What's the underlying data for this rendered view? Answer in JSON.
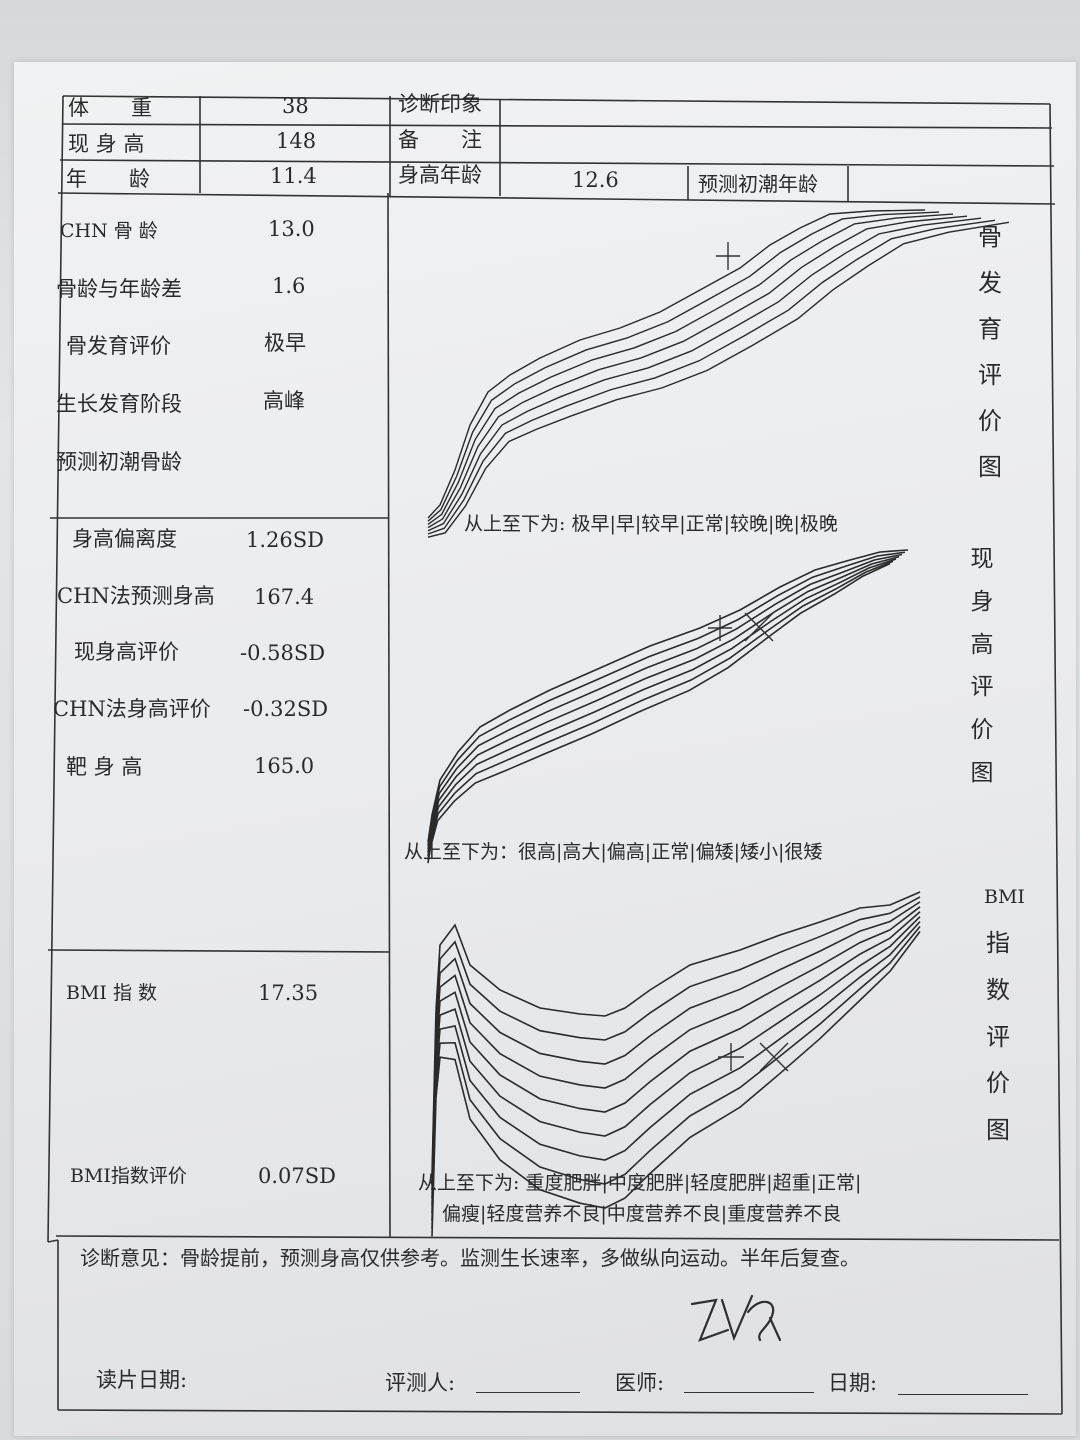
{
  "header": {
    "weight_label": "体　　重",
    "weight_value": "38",
    "height_label": "现 身 高",
    "height_value": "148",
    "age_label": "年　　龄",
    "age_value": "11.4",
    "diagnosis_label": "诊断印象",
    "diagnosis_value": "",
    "remarks_label": "备　　注",
    "remarks_value": "",
    "height_age_label": "身高年龄",
    "height_age_value": "12.6",
    "menarche_age_label": "预测初潮年龄",
    "menarche_age_value": ""
  },
  "bone": {
    "chn_bone_age_label": "CHN 骨 龄",
    "chn_bone_age_value": "13.0",
    "diff_label": "骨龄与年龄差",
    "diff_value": "1.6",
    "eval_label": "骨发育评价",
    "eval_value": "极早",
    "stage_label": "生长发育阶段",
    "stage_value": "高峰",
    "menarche_bone_label": "预测初潮骨龄",
    "menarche_bone_value": ""
  },
  "height": {
    "sd_label": "身高偏离度",
    "sd_value": "1.26SD",
    "pred_label": "CHN法预测身高",
    "pred_value": "167.4",
    "cur_eval_label": "现身高评价",
    "cur_eval_value": "-0.58SD",
    "chn_eval_label": "CHN法身高评价",
    "chn_eval_value": "-0.32SD",
    "target_label": "靶 身 高",
    "target_value": "165.0"
  },
  "bmi": {
    "label": "BMI 指 数",
    "value": "17.35",
    "eval_label": "BMI指数评价",
    "eval_value": "0.07SD"
  },
  "charts": {
    "bone_title": "骨发育评价图",
    "bone_legend": "从上至下为: 极早|早|较早|正常|较晚|晚|极晚",
    "height_title": "现身高评价图",
    "height_legend": "从上至下为：很高|高大|偏高|正常|偏矮|矮小|很矮",
    "bmi_title_top": "BMI",
    "bmi_title_rest": "指数评价图",
    "bmi_legend_line1": "从上至下为: 重度肥胖|中度肥胖|轻度肥胖|超重|正常|",
    "bmi_legend_line2": "偏瘦|轻度营养不良|中度营养不良|重度营养不良"
  },
  "footer": {
    "opinion": "诊断意见：骨龄提前，预测身高仅供参考。监测生长速率，多做纵向运动。半年后复查。",
    "reading_date_label": "读片日期:",
    "evaluator_label": "评测人:",
    "doctor_label": "医师:",
    "date_label": "日期:"
  }
}
